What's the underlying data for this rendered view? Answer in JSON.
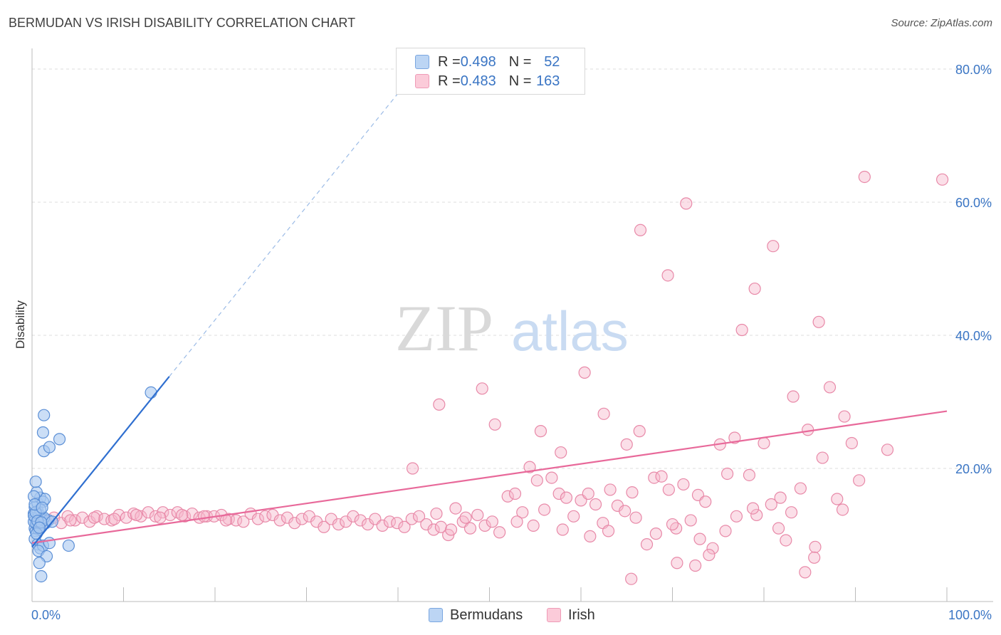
{
  "header": {
    "title": "BERMUDAN VS IRISH DISABILITY CORRELATION CHART",
    "source": "Source: ZipAtlas.com"
  },
  "watermark": {
    "zip": "ZIP",
    "atlas": "atlas"
  },
  "legend": {
    "rows": [
      {
        "r_label": "R = ",
        "r_value": "0.498",
        "n_label": "N = ",
        "n_value": "52",
        "color": "#a9c8f0"
      },
      {
        "r_label": "R = ",
        "r_value": "0.483",
        "n_label": "N = ",
        "n_value": "163",
        "color": "#f7b8cc"
      }
    ]
  },
  "bottom_legend": [
    {
      "label": "Bermudans",
      "color": "#a9c8f0"
    },
    {
      "label": "Irish",
      "color": "#f7b8cc"
    }
  ],
  "colors": {
    "bermudan_fill": "#a9c8f0",
    "bermudan_stroke": "#5b8fd6",
    "bermudan_line": "#2f6fd0",
    "irish_fill": "#f7b8cc",
    "irish_stroke": "#e889a8",
    "irish_line": "#e8699a",
    "tick_label": "#3a75c4",
    "grid": "#dddddd"
  },
  "chart_data": {
    "type": "scatter",
    "title": "BERMUDAN VS IRISH DISABILITY CORRELATION CHART",
    "xlabel": "",
    "ylabel": "Disability",
    "xlim": [
      0,
      100
    ],
    "ylim": [
      0,
      80
    ],
    "x_tick_labels": [
      "0.0%",
      "100.0%"
    ],
    "y_tick_labels": [
      "20.0%",
      "40.0%",
      "60.0%",
      "80.0%"
    ],
    "y_ticks": [
      20,
      40,
      60,
      80
    ],
    "grid": "horizontal dashed",
    "legend_placement": "top-center",
    "series": [
      {
        "name": "Bermudans",
        "r": 0.498,
        "n": 52,
        "trend": {
          "x_start": 0,
          "y_start": 8.2,
          "x_solid_end": 15,
          "y_solid_end": 33.8,
          "x_dash_end": 43.5,
          "y_dash_end": 82.3
        },
        "points": [
          [
            0.2,
            13.2
          ],
          [
            0.3,
            12.6
          ],
          [
            0.4,
            11.8
          ],
          [
            0.5,
            12.4
          ],
          [
            0.3,
            11.0
          ],
          [
            0.6,
            13.6
          ],
          [
            0.8,
            12.2
          ],
          [
            0.4,
            10.6
          ],
          [
            0.7,
            11.4
          ],
          [
            1.0,
            12.8
          ],
          [
            0.3,
            14.2
          ],
          [
            0.6,
            14.8
          ],
          [
            0.9,
            15.6
          ],
          [
            1.2,
            15.0
          ],
          [
            1.4,
            15.4
          ],
          [
            0.5,
            16.4
          ],
          [
            0.2,
            15.8
          ],
          [
            0.4,
            18.0
          ],
          [
            0.8,
            13.0
          ],
          [
            1.5,
            11.8
          ],
          [
            1.8,
            12.2
          ],
          [
            1.1,
            11.4
          ],
          [
            0.5,
            11.6
          ],
          [
            0.2,
            12.0
          ],
          [
            0.7,
            10.8
          ],
          [
            1.3,
            12.6
          ],
          [
            0.9,
            13.8
          ],
          [
            0.3,
            9.4
          ],
          [
            0.6,
            8.6
          ],
          [
            0.9,
            8.0
          ],
          [
            1.2,
            8.4
          ],
          [
            0.7,
            7.6
          ],
          [
            1.6,
            6.8
          ],
          [
            0.8,
            5.8
          ],
          [
            1.0,
            3.8
          ],
          [
            1.9,
            8.8
          ],
          [
            4.0,
            8.4
          ],
          [
            1.3,
            22.6
          ],
          [
            1.2,
            25.4
          ],
          [
            1.3,
            28.0
          ],
          [
            3.0,
            24.4
          ],
          [
            1.9,
            23.2
          ],
          [
            13.0,
            31.4
          ],
          [
            0.2,
            12.9
          ],
          [
            0.4,
            13.4
          ],
          [
            0.6,
            12.1
          ],
          [
            1.0,
            11.9
          ],
          [
            0.3,
            14.6
          ],
          [
            0.5,
            10.2
          ],
          [
            1.1,
            14.1
          ],
          [
            0.8,
            11.1
          ],
          [
            2.2,
            12.0
          ]
        ]
      },
      {
        "name": "Irish",
        "r": 0.483,
        "n": 163,
        "trend": {
          "x_start": 0,
          "y_start": 8.8,
          "x_end": 100,
          "y_end": 28.6
        },
        "points": [
          [
            1.0,
            12.4
          ],
          [
            1.6,
            12.0
          ],
          [
            2.4,
            12.6
          ],
          [
            3.2,
            11.8
          ],
          [
            3.9,
            12.8
          ],
          [
            4.7,
            12.2
          ],
          [
            5.5,
            12.6
          ],
          [
            6.3,
            12.0
          ],
          [
            7.1,
            12.8
          ],
          [
            7.9,
            12.4
          ],
          [
            8.7,
            12.2
          ],
          [
            9.5,
            13.0
          ],
          [
            10.3,
            12.6
          ],
          [
            11.1,
            13.2
          ],
          [
            11.9,
            12.8
          ],
          [
            12.7,
            13.4
          ],
          [
            13.5,
            12.8
          ],
          [
            14.3,
            13.4
          ],
          [
            15.1,
            13.0
          ],
          [
            15.9,
            13.4
          ],
          [
            16.7,
            12.8
          ],
          [
            17.5,
            13.2
          ],
          [
            18.3,
            12.6
          ],
          [
            19.1,
            12.8
          ],
          [
            19.9,
            12.8
          ],
          [
            20.7,
            13.0
          ],
          [
            21.5,
            12.4
          ],
          [
            22.3,
            12.2
          ],
          [
            23.1,
            12.0
          ],
          [
            23.9,
            13.2
          ],
          [
            24.7,
            12.4
          ],
          [
            25.5,
            12.8
          ],
          [
            26.3,
            13.0
          ],
          [
            27.1,
            12.2
          ],
          [
            27.9,
            12.6
          ],
          [
            28.7,
            11.8
          ],
          [
            29.5,
            12.4
          ],
          [
            30.3,
            12.8
          ],
          [
            31.1,
            12.0
          ],
          [
            31.9,
            11.2
          ],
          [
            32.7,
            12.4
          ],
          [
            33.5,
            11.6
          ],
          [
            34.3,
            12.0
          ],
          [
            35.1,
            12.8
          ],
          [
            35.9,
            12.2
          ],
          [
            36.7,
            11.6
          ],
          [
            37.5,
            12.4
          ],
          [
            38.3,
            11.4
          ],
          [
            39.1,
            12.0
          ],
          [
            39.9,
            11.8
          ],
          [
            40.7,
            11.2
          ],
          [
            41.5,
            12.4
          ],
          [
            42.3,
            12.8
          ],
          [
            43.1,
            11.6
          ],
          [
            43.9,
            10.8
          ],
          [
            44.7,
            11.2
          ],
          [
            45.5,
            10.0
          ],
          [
            46.3,
            14.0
          ],
          [
            47.1,
            12.0
          ],
          [
            47.9,
            11.0
          ],
          [
            48.7,
            13.0
          ],
          [
            49.5,
            11.4
          ],
          [
            50.3,
            12.0
          ],
          [
            51.1,
            10.4
          ],
          [
            52.0,
            15.8
          ],
          [
            52.8,
            16.2
          ],
          [
            53.6,
            13.4
          ],
          [
            54.4,
            20.2
          ],
          [
            55.2,
            18.2
          ],
          [
            56.0,
            13.8
          ],
          [
            56.8,
            18.6
          ],
          [
            57.6,
            16.2
          ],
          [
            58.4,
            15.6
          ],
          [
            59.2,
            12.8
          ],
          [
            60.0,
            15.2
          ],
          [
            60.8,
            16.2
          ],
          [
            61.6,
            14.6
          ],
          [
            62.4,
            11.8
          ],
          [
            63.2,
            16.8
          ],
          [
            64.0,
            14.4
          ],
          [
            64.8,
            13.6
          ],
          [
            65.6,
            16.4
          ],
          [
            66.4,
            25.6
          ],
          [
            67.2,
            8.6
          ],
          [
            68.0,
            18.6
          ],
          [
            68.8,
            18.8
          ],
          [
            69.6,
            16.8
          ],
          [
            70.4,
            11.0
          ],
          [
            71.2,
            17.6
          ],
          [
            72.0,
            12.2
          ],
          [
            72.8,
            16.0
          ],
          [
            73.6,
            15.0
          ],
          [
            74.4,
            8.0
          ],
          [
            75.2,
            23.6
          ],
          [
            76.0,
            19.2
          ],
          [
            76.8,
            24.6
          ],
          [
            77.6,
            40.8
          ],
          [
            78.4,
            19.0
          ],
          [
            79.2,
            13.0
          ],
          [
            80.0,
            23.8
          ],
          [
            80.8,
            14.6
          ],
          [
            81.6,
            11.0
          ],
          [
            82.4,
            9.2
          ],
          [
            83.2,
            30.8
          ],
          [
            84.0,
            17.0
          ],
          [
            84.8,
            25.8
          ],
          [
            85.6,
            8.2
          ],
          [
            86.4,
            21.6
          ],
          [
            87.2,
            32.2
          ],
          [
            88.0,
            15.4
          ],
          [
            88.8,
            27.8
          ],
          [
            89.6,
            23.8
          ],
          [
            90.4,
            18.2
          ],
          [
            41.6,
            20.0
          ],
          [
            44.5,
            29.6
          ],
          [
            49.2,
            32.0
          ],
          [
            50.6,
            26.6
          ],
          [
            55.6,
            25.6
          ],
          [
            57.8,
            22.4
          ],
          [
            60.4,
            34.4
          ],
          [
            62.5,
            28.2
          ],
          [
            65.0,
            23.6
          ],
          [
            66.5,
            55.8
          ],
          [
            69.5,
            49.0
          ],
          [
            71.5,
            59.8
          ],
          [
            81.0,
            53.4
          ],
          [
            79.0,
            47.0
          ],
          [
            86.0,
            42.0
          ],
          [
            91.0,
            63.8
          ],
          [
            99.5,
            63.4
          ],
          [
            93.5,
            22.8
          ],
          [
            84.5,
            4.4
          ],
          [
            85.5,
            6.6
          ],
          [
            65.5,
            3.4
          ],
          [
            72.5,
            5.4
          ],
          [
            74.0,
            7.0
          ],
          [
            70.5,
            5.8
          ],
          [
            44.2,
            13.2
          ],
          [
            45.8,
            10.8
          ],
          [
            47.4,
            12.6
          ],
          [
            53.0,
            12.0
          ],
          [
            54.8,
            11.4
          ],
          [
            58.0,
            10.8
          ],
          [
            61.0,
            9.8
          ],
          [
            63.0,
            10.6
          ],
          [
            66.0,
            12.6
          ],
          [
            68.2,
            10.2
          ],
          [
            70.0,
            11.6
          ],
          [
            73.0,
            9.4
          ],
          [
            75.8,
            10.6
          ],
          [
            77.0,
            12.8
          ],
          [
            78.8,
            14.0
          ],
          [
            81.8,
            15.6
          ],
          [
            83.0,
            13.4
          ],
          [
            4.2,
            12.2
          ],
          [
            6.8,
            12.6
          ],
          [
            9.0,
            12.4
          ],
          [
            11.4,
            13.0
          ],
          [
            14.0,
            12.6
          ],
          [
            16.4,
            13.0
          ],
          [
            18.8,
            12.8
          ],
          [
            21.2,
            12.2
          ],
          [
            88.6,
            13.8
          ]
        ]
      }
    ]
  }
}
